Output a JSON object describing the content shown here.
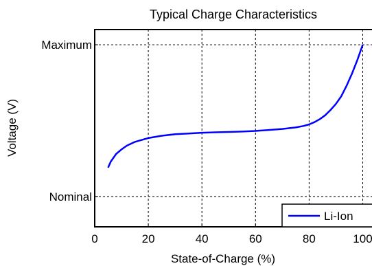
{
  "chart_data": {
    "type": "line",
    "title": "Typical Charge Characteristics",
    "xlabel": "State-of-Charge (%)",
    "ylabel": "Voltage (V)",
    "xlim": [
      0,
      105
    ],
    "ylim": [
      0,
      1.3
    ],
    "x_ticks": [
      0,
      20,
      40,
      60,
      80,
      100
    ],
    "y_ticks": [
      {
        "value": 0.2,
        "label": "Nominal"
      },
      {
        "value": 1.2,
        "label": "Maximum"
      }
    ],
    "grid": true,
    "legend_position": "bottom-right",
    "series": [
      {
        "name": "Li-Ion",
        "color": "#0000ff",
        "x": [
          5,
          6,
          8,
          10,
          12,
          15,
          18,
          20,
          25,
          30,
          35,
          40,
          45,
          50,
          55,
          60,
          65,
          70,
          75,
          78,
          80,
          82,
          84,
          86,
          88,
          90,
          92,
          94,
          96,
          98,
          100
        ],
        "y": [
          0.39,
          0.43,
          0.48,
          0.51,
          0.535,
          0.56,
          0.575,
          0.585,
          0.6,
          0.61,
          0.615,
          0.62,
          0.623,
          0.625,
          0.628,
          0.632,
          0.638,
          0.645,
          0.655,
          0.665,
          0.675,
          0.69,
          0.71,
          0.735,
          0.77,
          0.81,
          0.86,
          0.93,
          1.01,
          1.1,
          1.2
        ]
      }
    ]
  }
}
